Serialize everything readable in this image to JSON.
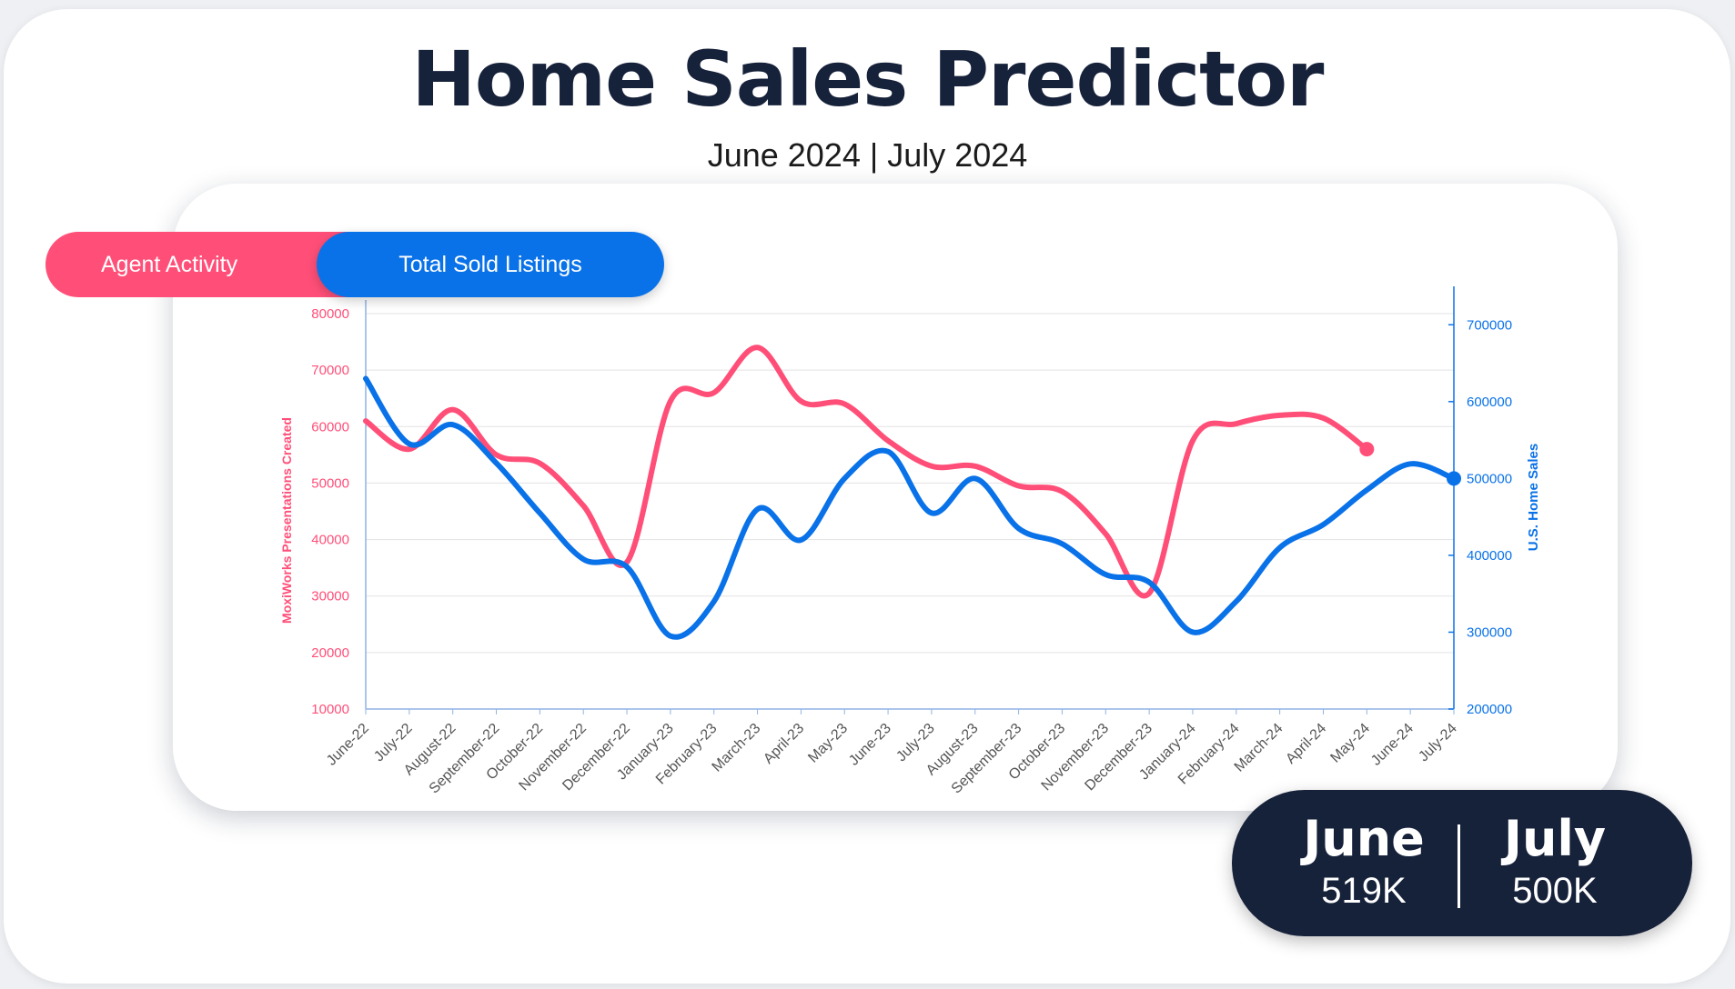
{
  "header": {
    "title": "Home Sales Predictor",
    "subtitle": "June 2024 | July 2024"
  },
  "toggle": {
    "agent_label": "Agent Activity",
    "sold_label": "Total Sold Listings"
  },
  "summary": {
    "june": {
      "month": "June",
      "value": "519K"
    },
    "july": {
      "month": "July",
      "value": "500K"
    }
  },
  "colors": {
    "agent": "#ff4f78",
    "sold": "#0a72e8",
    "dark": "#16213a"
  },
  "chart_data": {
    "type": "line",
    "x": [
      "June-22",
      "July-22",
      "August-22",
      "September-22",
      "October-22",
      "November-22",
      "December-22",
      "January-23",
      "February-23",
      "March-23",
      "April-23",
      "May-23",
      "June-23",
      "July-23",
      "August-23",
      "September-23",
      "October-23",
      "November-23",
      "December-23",
      "January-24",
      "February-24",
      "March-24",
      "April-24",
      "May-24",
      "June-24",
      "July-24"
    ],
    "left_axis": {
      "label": "MoxiWorks Presentations Created",
      "range": [
        10000,
        80000
      ],
      "ticks": [
        10000,
        20000,
        30000,
        40000,
        50000,
        60000,
        70000,
        80000
      ]
    },
    "right_axis": {
      "label": "U.S. Home Sales",
      "range": [
        200000,
        750000
      ],
      "ticks": [
        200000,
        300000,
        400000,
        500000,
        600000,
        700000
      ]
    },
    "grid": true,
    "series": [
      {
        "axis": "left",
        "color": "#ff4f78",
        "values": [
          61000,
          56000,
          63000,
          55000,
          53500,
          46000,
          36000,
          64500,
          66000,
          74000,
          64500,
          64000,
          57500,
          53000,
          53000,
          49500,
          48500,
          41000,
          30500,
          57500,
          60500,
          62000,
          61500,
          56000,
          null,
          null
        ]
      },
      {
        "axis": "right",
        "color": "#0a72e8",
        "values": [
          630000,
          545000,
          570000,
          520000,
          455000,
          395000,
          385000,
          295000,
          340000,
          460000,
          420000,
          500000,
          535000,
          455000,
          500000,
          435000,
          415000,
          375000,
          365000,
          300000,
          340000,
          410000,
          440000,
          485000,
          519000,
          500000
        ]
      }
    ]
  }
}
